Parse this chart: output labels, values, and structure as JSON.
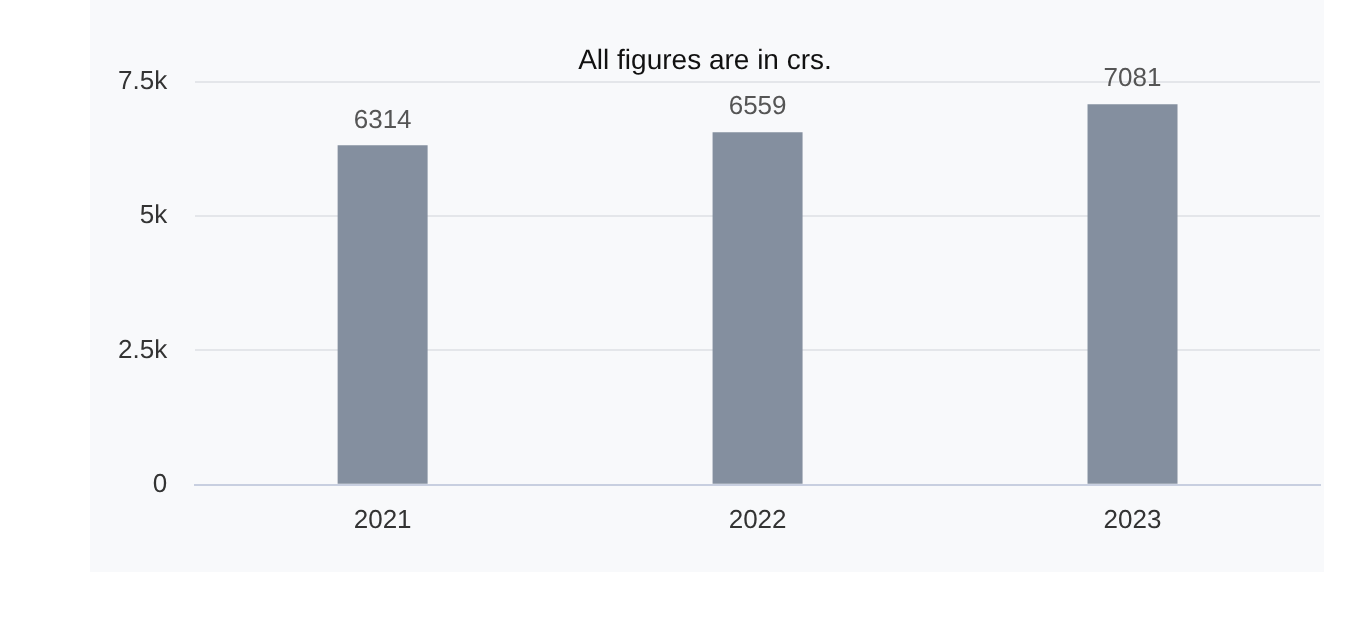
{
  "chart_data": {
    "type": "bar",
    "title": "All figures are in crs.",
    "categories": [
      "2021",
      "2022",
      "2023"
    ],
    "values": [
      6314,
      6559,
      7081
    ],
    "color": "#848f9f",
    "ylim": [
      0,
      7500
    ],
    "yticks": [
      {
        "value": 0,
        "label": "0"
      },
      {
        "value": 2500,
        "label": "2.5k"
      },
      {
        "value": 5000,
        "label": "5k"
      },
      {
        "value": 7500,
        "label": "7.5k"
      }
    ],
    "grid": "y",
    "data_labels": true,
    "legend": false
  }
}
